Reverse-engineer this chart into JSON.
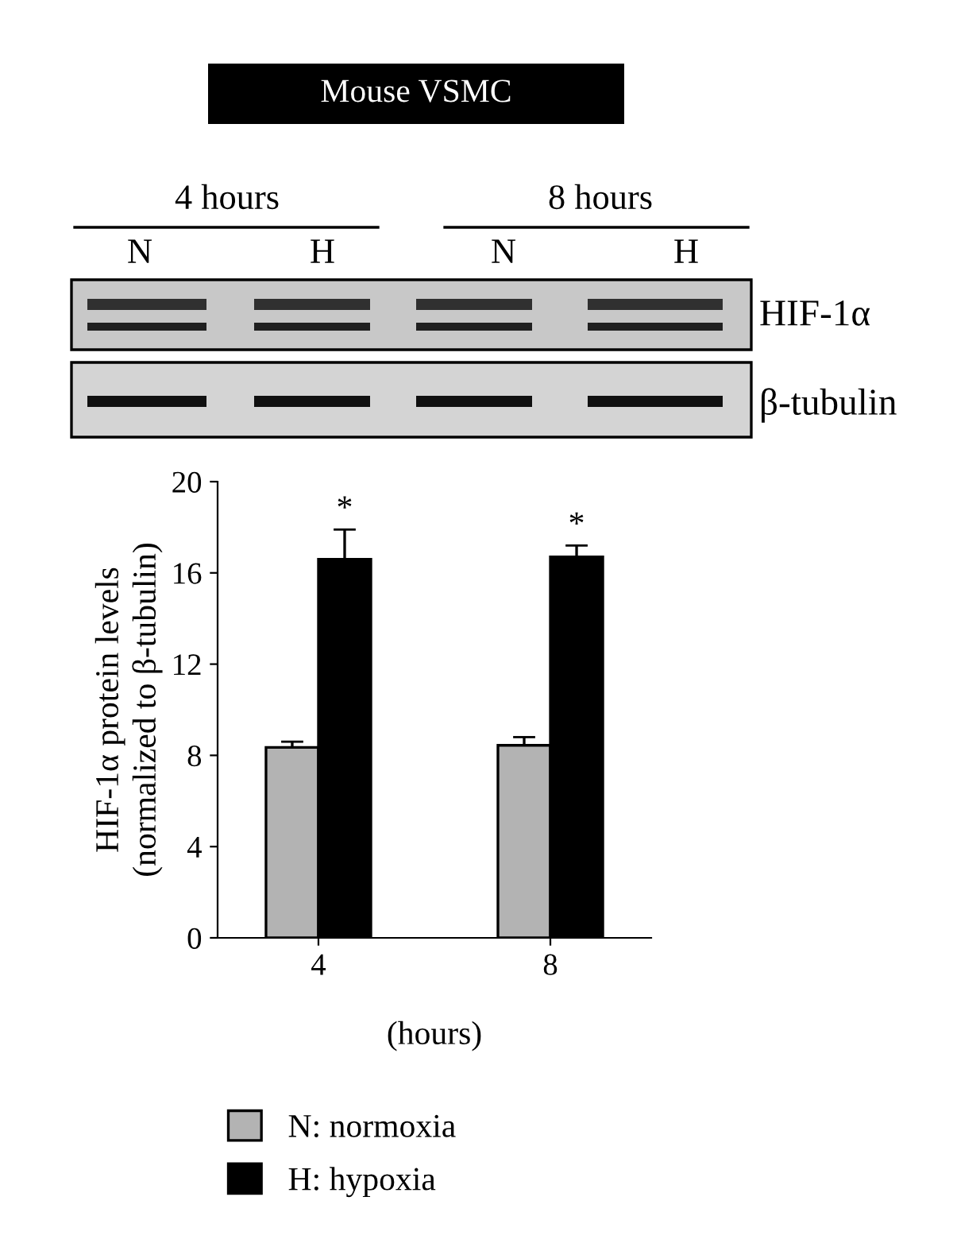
{
  "chart_data": {
    "type": "bar",
    "title": "Mouse VSMC",
    "categories": [
      "4",
      "8"
    ],
    "series": [
      {
        "name": "N: normoxia",
        "color": "#b3b3b3",
        "values": [
          8.35,
          8.44
        ],
        "errors": [
          [
            8.35,
            8.6
          ],
          [
            8.44,
            8.8
          ]
        ]
      },
      {
        "name": "H: hypoxia",
        "color": "#000000",
        "values": [
          16.6,
          16.7
        ],
        "errors": [
          [
            16.6,
            17.9
          ],
          [
            16.7,
            17.2
          ]
        ]
      }
    ],
    "xlabel": "(hours)",
    "ylabel": "HIF-1α protein levels\n(normalized to β-tubulin)",
    "ylim": [
      0,
      20
    ],
    "yticks": [
      0,
      4,
      8,
      12,
      16,
      20
    ],
    "grid": false,
    "legend": "bottom left",
    "annotations": [
      "*",
      "*",
      "4 hours",
      "8 hours",
      "N",
      "H",
      "N",
      "H",
      "HIF-1α",
      "β-tubulin"
    ]
  }
}
